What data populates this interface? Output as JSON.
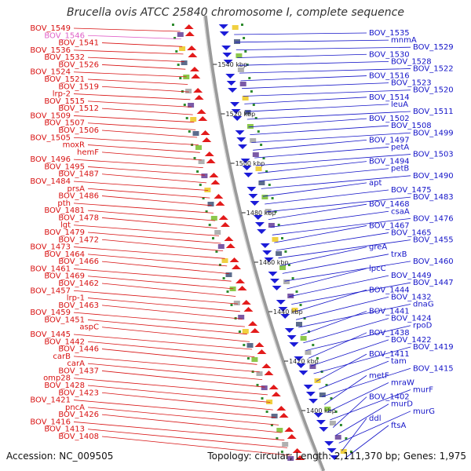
{
  "title": "Brucella ovis ATCC 25840 chromosome I, complete sequence",
  "footer": {
    "accession": "Accession: NC_009505",
    "summary": "Topology: circular; Length: 2,111,370 bp; Genes: 1,975"
  },
  "colors": {
    "left_label": "#d81212",
    "right_label": "#1414c8",
    "faded_label": "#e060c8",
    "tick_text": "#222222",
    "backbone": "#8a8a8a",
    "forward_arrow": "#e31b1b",
    "reverse_arrow": "#1c1cd8"
  },
  "left_labels": [
    "BOV_1549",
    "BOV_1546",
    "BOV_1541",
    "BOV_1536",
    "BOV_1532",
    "BOV_1526",
    "BOV_1524",
    "BOV_1521",
    "BOV_1519",
    "lrp-2",
    "BOV_1515",
    "BOV_1512",
    "BOV_1509",
    "BOV_1507",
    "BOV_1506",
    "BOV_1505",
    "moxR",
    "hemF",
    "BOV_1496",
    "BOV_1495",
    "BOV_1487",
    "BOV_1484",
    "prsA",
    "BOV_1486",
    "pth",
    "BOV_1481",
    "BOV_1478",
    "lgt",
    "BOV_1479",
    "BOV_1472",
    "BOV_1473",
    "BOV_1464",
    "BOV_1466",
    "BOV_1461",
    "BOV_1469",
    "BOV_1462",
    "BOV_1457",
    "lrp-1",
    "BOV_1463",
    "BOV_1459",
    "BOV_1451",
    "aspC",
    "BOV_1445",
    "BOV_1442",
    "BOV_1446",
    "carB",
    "carA",
    "BOV_1437",
    "omp28",
    "BOV_1428",
    "BOV_1423",
    "BOV_1421",
    "pncA",
    "BOV_1426",
    "BOV_1416",
    "BOV_1413",
    "BOV_1408"
  ],
  "right_labels": [
    "BOV_1535",
    "mnmA",
    "BOV_1529",
    "BOV_1530",
    "BOV_1528",
    "BOV_1522",
    "BOV_1516",
    "BOV_1523",
    "BOV_1520",
    "BOV_1514",
    "leuA",
    "BOV_1511",
    "BOV_1502",
    "BOV_1508",
    "BOV_1499",
    "BOV_1497",
    "petA",
    "BOV_1503",
    "BOV_1494",
    "petB",
    "BOV_1490",
    "apt",
    "BOV_1475",
    "BOV_1483",
    "BOV_1468",
    "csaA",
    "BOV_1476",
    "BOV_1467",
    "BOV_1465",
    "BOV_1455",
    "greA",
    "trxB",
    "BOV_1460",
    "lpcC",
    "BOV_1449",
    "BOV_1447",
    "BOV_1444",
    "BOV_1432",
    "dnaG",
    "BOV_1441",
    "BOV_1424",
    "rpoD",
    "BOV_1438",
    "BOV_1422",
    "BOV_1419",
    "BOV_1411",
    "tam",
    "BOV_1415",
    "metF",
    "mraW",
    "murF",
    "BOV_1402",
    "murD",
    "murG",
    "ddl",
    "ftsA"
  ],
  "tick_labels": [
    "1540 kbp",
    "1520 kbp",
    "1500 kbp",
    "1480 kbp",
    "1460 kbp",
    "1440 kbp",
    "1420 kbp",
    "1400 kbp"
  ]
}
